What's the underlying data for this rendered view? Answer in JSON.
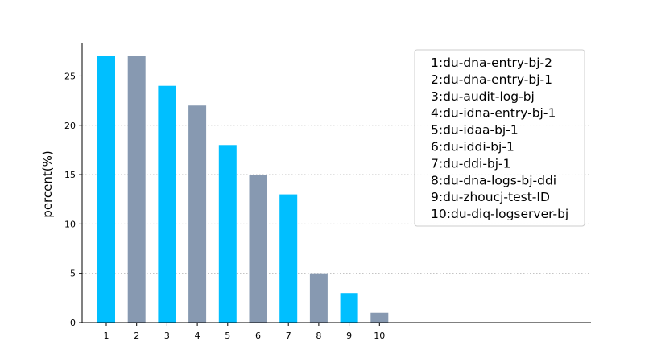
{
  "chart_data": {
    "type": "bar",
    "categories": [
      "1",
      "2",
      "3",
      "4",
      "5",
      "6",
      "7",
      "8",
      "9",
      "10"
    ],
    "values": [
      27,
      27,
      24,
      22,
      18,
      15,
      13,
      5,
      3,
      1
    ],
    "ylabel": "percent(%)",
    "ylim": [
      0,
      28.3
    ],
    "yticks": [
      0,
      5,
      10,
      15,
      20,
      25
    ],
    "grid": "y-dotted",
    "legend_position": "top-right",
    "legend": [
      "1:du-dna-entry-bj-2",
      "2:du-dna-entry-bj-1",
      "3:du-audit-log-bj",
      "4:du-idna-entry-bj-1",
      "5:du-idaa-bj-1",
      "6:du-iddi-bj-1",
      "7:du-ddi-bj-1",
      "8:du-dna-logs-bj-ddi",
      "9:du-zhoucj-test-ID",
      "10:du-diq-logserver-bj"
    ],
    "colors": [
      "#00bfff",
      "#8799b1"
    ]
  }
}
